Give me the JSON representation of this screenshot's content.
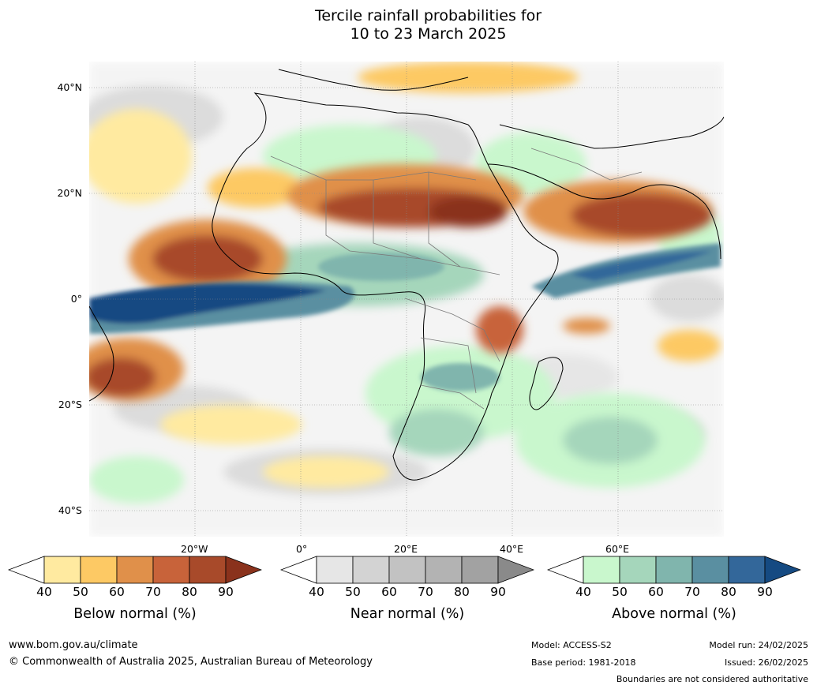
{
  "title_line1": "Tercile rainfall probabilities for",
  "title_line2": "10 to 23 March 2025",
  "lat_labels": [
    "40°N",
    "20°N",
    "0°",
    "20°S",
    "40°S"
  ],
  "lon_labels": [
    "20°W",
    "0°",
    "20°E",
    "40°E",
    "60°E"
  ],
  "colorbars": [
    {
      "title": "Below normal (%)",
      "ticks": [
        "40",
        "50",
        "60",
        "70",
        "80",
        "90"
      ],
      "colors": [
        "#ffffff",
        "#ffeaa0",
        "#fdc964",
        "#e0904a",
        "#c8633a",
        "#a84a2a",
        "#8a321c"
      ]
    },
    {
      "title": "Near normal (%)",
      "ticks": [
        "40",
        "50",
        "60",
        "70",
        "80",
        "90"
      ],
      "colors": [
        "#ffffff",
        "#e6e6e6",
        "#d3d3d3",
        "#c2c2c2",
        "#b3b3b3",
        "#a2a2a2",
        "#8a8a8a"
      ]
    },
    {
      "title": "Above normal (%)",
      "ticks": [
        "40",
        "50",
        "60",
        "70",
        "80",
        "90"
      ],
      "colors": [
        "#ffffff",
        "#c9f7cd",
        "#a5d6bb",
        "#80b5ad",
        "#5a8fa1",
        "#33679a",
        "#154a82"
      ]
    }
  ],
  "footer": {
    "website": "www.bom.gov.au/climate",
    "copyright": "© Commonwealth of Australia 2025, Australian Bureau of Meteorology",
    "model": "Model: ACCESS-S2",
    "base_period": "Base period: 1981-2018",
    "model_run": "Model run: 24/02/2025",
    "issued": "Issued: 26/02/2025",
    "disclaimer": "Boundaries are not considered authoritative"
  }
}
